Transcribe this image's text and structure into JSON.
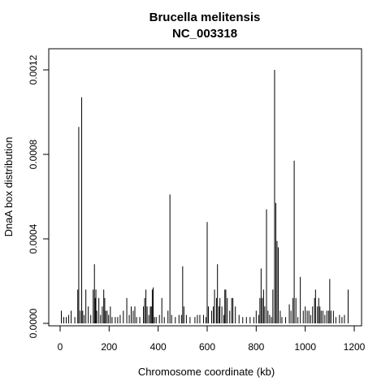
{
  "chart_data": {
    "type": "bar",
    "title": "Brucella melitensis",
    "subtitle": "NC_003318",
    "xlabel": "Chromosome coordinate (kb)",
    "ylabel": "DnaA box distribution",
    "xlim": [
      0,
      1200
    ],
    "ylim": [
      0,
      0.0012
    ],
    "x_ticks": [
      0,
      200,
      400,
      600,
      800,
      1000,
      1200
    ],
    "x_tick_labels": [
      "0",
      "200",
      "400",
      "600",
      "800",
      "1000",
      "1200"
    ],
    "y_ticks": [
      0,
      0.0004,
      0.0008,
      0.0012
    ],
    "y_tick_labels": [
      "0.0000",
      "0.0004",
      "0.0008",
      "0.0012"
    ],
    "grid": false,
    "legend": "none",
    "bar_color": "#000000",
    "x": [
      5,
      15,
      25,
      35,
      45,
      60,
      72,
      76,
      82,
      88,
      92,
      98,
      105,
      115,
      125,
      135,
      140,
      143,
      146,
      150,
      158,
      165,
      172,
      178,
      182,
      186,
      192,
      198,
      205,
      212,
      225,
      235,
      245,
      258,
      272,
      282,
      290,
      298,
      305,
      312,
      325,
      340,
      345,
      350,
      355,
      362,
      368,
      372,
      376,
      380,
      385,
      392,
      405,
      415,
      425,
      440,
      448,
      455,
      470,
      485,
      495,
      500,
      505,
      515,
      530,
      550,
      560,
      570,
      585,
      595,
      600,
      605,
      618,
      625,
      630,
      638,
      642,
      648,
      652,
      660,
      668,
      672,
      676,
      682,
      692,
      700,
      705,
      715,
      730,
      745,
      760,
      775,
      790,
      800,
      810,
      815,
      820,
      825,
      830,
      835,
      842,
      848,
      855,
      862,
      868,
      875,
      880,
      885,
      890,
      898,
      905,
      920,
      935,
      942,
      950,
      955,
      962,
      970,
      980,
      992,
      1000,
      1008,
      1015,
      1022,
      1030,
      1038,
      1042,
      1050,
      1055,
      1060,
      1065,
      1072,
      1080,
      1088,
      1095,
      1100,
      1105,
      1115,
      1125,
      1140,
      1150,
      1160,
      1175
    ],
    "values": [
      6e-05,
      3e-05,
      3e-05,
      4e-05,
      6e-05,
      3e-05,
      0.00016,
      0.00093,
      6e-05,
      0.00107,
      6e-05,
      4e-05,
      0.00016,
      8e-05,
      4e-05,
      0.00016,
      0.00028,
      0.00012,
      0.00016,
      6e-05,
      0.00012,
      4e-05,
      8e-05,
      0.00016,
      0.00012,
      6e-05,
      6e-05,
      4e-05,
      8e-05,
      3e-05,
      3e-05,
      3e-05,
      4e-05,
      6e-05,
      0.00012,
      4e-05,
      8e-05,
      6e-05,
      8e-05,
      3e-05,
      3e-05,
      8e-05,
      0.00012,
      0.00016,
      8e-05,
      4e-05,
      8e-05,
      8e-05,
      0.00016,
      0.00017,
      3e-05,
      3e-05,
      4e-05,
      0.00012,
      3e-05,
      6e-05,
      0.00061,
      4e-05,
      3e-05,
      4e-05,
      4e-05,
      0.00027,
      8e-05,
      4e-05,
      3e-05,
      3e-05,
      4e-05,
      4e-05,
      4e-05,
      3e-05,
      0.00048,
      8e-05,
      6e-05,
      8e-05,
      0.00016,
      0.00012,
      0.00028,
      8e-05,
      0.00012,
      8e-05,
      4e-05,
      0.00016,
      0.00016,
      0.00012,
      6e-05,
      0.00012,
      0.00012,
      8e-05,
      4e-05,
      3e-05,
      3e-05,
      3e-05,
      3e-05,
      6e-05,
      4e-05,
      0.00012,
      0.00026,
      0.00012,
      0.00016,
      8e-05,
      0.00054,
      6e-05,
      4e-05,
      3e-05,
      0.00016,
      0.0012,
      0.00057,
      0.00039,
      0.00036,
      6e-05,
      3e-05,
      3e-05,
      9e-05,
      6e-05,
      0.00012,
      0.00077,
      0.00012,
      3e-05,
      0.00022,
      6e-05,
      8e-05,
      6e-05,
      6e-05,
      4e-05,
      8e-05,
      0.00012,
      0.00016,
      8e-05,
      0.00012,
      8e-05,
      6e-05,
      6e-05,
      4e-05,
      6e-05,
      6e-05,
      0.00021,
      6e-05,
      6e-05,
      3e-05,
      4e-05,
      3e-05,
      4e-05,
      0.00016
    ]
  }
}
